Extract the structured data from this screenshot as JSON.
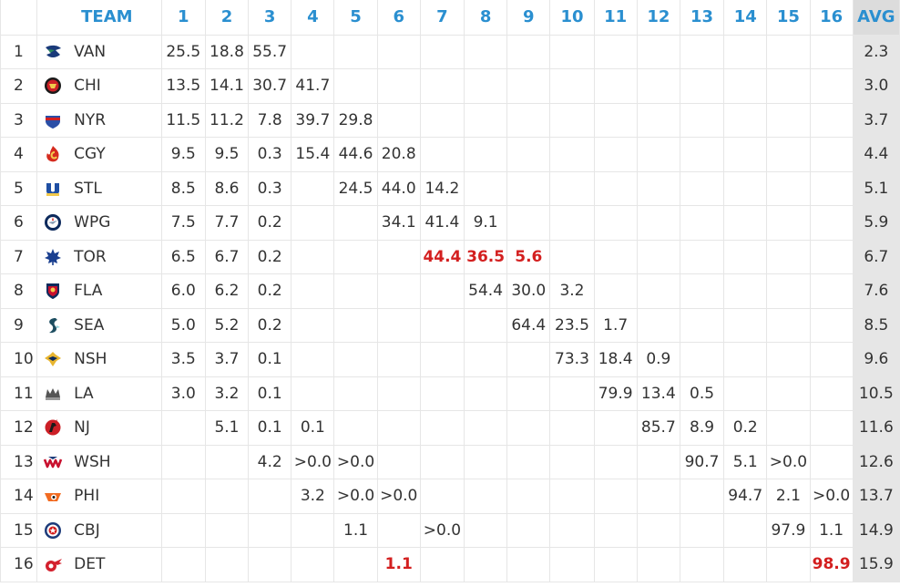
{
  "chart_data": {
    "type": "table",
    "columns": [
      "TEAM",
      "1",
      "2",
      "3",
      "4",
      "5",
      "6",
      "7",
      "8",
      "9",
      "10",
      "11",
      "12",
      "13",
      "14",
      "15",
      "16",
      "AVG"
    ],
    "rows": [
      {
        "rank": "1",
        "team": "VAN",
        "logo": "canucks-logo",
        "color": "#1a3a7a",
        "cells": [
          "25.5",
          "18.8",
          "55.7",
          "",
          "",
          "",
          "",
          "",
          "",
          "",
          "",
          "",
          "",
          "",
          "",
          ""
        ],
        "avg": "2.3",
        "highlight": []
      },
      {
        "rank": "2",
        "team": "CHI",
        "logo": "blackhawks-logo",
        "color": "#cc1f26",
        "cells": [
          "13.5",
          "14.1",
          "30.7",
          "41.7",
          "",
          "",
          "",
          "",
          "",
          "",
          "",
          "",
          "",
          "",
          "",
          ""
        ],
        "avg": "3.0",
        "highlight": []
      },
      {
        "rank": "3",
        "team": "NYR",
        "logo": "rangers-logo",
        "color": "#2a4ea6",
        "cells": [
          "11.5",
          "11.2",
          "7.8",
          "39.7",
          "29.8",
          "",
          "",
          "",
          "",
          "",
          "",
          "",
          "",
          "",
          "",
          ""
        ],
        "avg": "3.7",
        "highlight": []
      },
      {
        "rank": "4",
        "team": "CGY",
        "logo": "flames-logo",
        "color": "#d52b1e",
        "cells": [
          "9.5",
          "9.5",
          "0.3",
          "15.4",
          "44.6",
          "20.8",
          "",
          "",
          "",
          "",
          "",
          "",
          "",
          "",
          "",
          ""
        ],
        "avg": "4.4",
        "highlight": []
      },
      {
        "rank": "5",
        "team": "STL",
        "logo": "blues-logo",
        "color": "#1f4fa3",
        "cells": [
          "8.5",
          "8.6",
          "0.3",
          "",
          "24.5",
          "44.0",
          "14.2",
          "",
          "",
          "",
          "",
          "",
          "",
          "",
          "",
          ""
        ],
        "avg": "5.1",
        "highlight": []
      },
      {
        "rank": "6",
        "team": "WPG",
        "logo": "jets-logo",
        "color": "#0d2a5c",
        "cells": [
          "7.5",
          "7.7",
          "0.2",
          "",
          "",
          "34.1",
          "41.4",
          "9.1",
          "",
          "",
          "",
          "",
          "",
          "",
          "",
          ""
        ],
        "avg": "5.9",
        "highlight": []
      },
      {
        "rank": "7",
        "team": "TOR",
        "logo": "maple-leafs-logo",
        "color": "#1a3f8f",
        "cells": [
          "6.5",
          "6.7",
          "0.2",
          "",
          "",
          "",
          "44.4",
          "36.5",
          "5.6",
          "",
          "",
          "",
          "",
          "",
          "",
          ""
        ],
        "avg": "6.7",
        "highlight": [
          6,
          7,
          8
        ]
      },
      {
        "rank": "8",
        "team": "FLA",
        "logo": "panthers-logo",
        "color": "#c8102e",
        "cells": [
          "6.0",
          "6.2",
          "0.2",
          "",
          "",
          "",
          "",
          "54.4",
          "30.0",
          "3.2",
          "",
          "",
          "",
          "",
          "",
          ""
        ],
        "avg": "7.6",
        "highlight": []
      },
      {
        "rank": "9",
        "team": "SEA",
        "logo": "kraken-logo",
        "color": "#1c4d60",
        "cells": [
          "5.0",
          "5.2",
          "0.2",
          "",
          "",
          "",
          "",
          "",
          "64.4",
          "23.5",
          "1.7",
          "",
          "",
          "",
          "",
          ""
        ],
        "avg": "8.5",
        "highlight": []
      },
      {
        "rank": "10",
        "team": "NSH",
        "logo": "predators-logo",
        "color": "#e8b530",
        "cells": [
          "3.5",
          "3.7",
          "0.1",
          "",
          "",
          "",
          "",
          "",
          "",
          "73.3",
          "18.4",
          "0.9",
          "",
          "",
          "",
          ""
        ],
        "avg": "9.6",
        "highlight": []
      },
      {
        "rank": "11",
        "team": "LA",
        "logo": "kings-logo",
        "color": "#555555",
        "cells": [
          "3.0",
          "3.2",
          "0.1",
          "",
          "",
          "",
          "",
          "",
          "",
          "",
          "79.9",
          "13.4",
          "0.5",
          "",
          "",
          ""
        ],
        "avg": "10.5",
        "highlight": []
      },
      {
        "rank": "12",
        "team": "NJ",
        "logo": "devils-logo",
        "color": "#cc1f26",
        "cells": [
          "",
          "5.1",
          "0.1",
          "0.1",
          "",
          "",
          "",
          "",
          "",
          "",
          "",
          "85.7",
          "8.9",
          "0.2",
          "",
          ""
        ],
        "avg": "11.6",
        "highlight": []
      },
      {
        "rank": "13",
        "team": "WSH",
        "logo": "capitals-logo",
        "color": "#c8102e",
        "cells": [
          "",
          "",
          "4.2",
          ">0.0",
          ">0.0",
          "",
          "",
          "",
          "",
          "",
          "",
          "",
          "90.7",
          "5.1",
          ">0.0",
          ""
        ],
        "avg": "12.6",
        "highlight": []
      },
      {
        "rank": "14",
        "team": "PHI",
        "logo": "flyers-logo",
        "color": "#f26b21",
        "cells": [
          "",
          "",
          "",
          "3.2",
          ">0.0",
          ">0.0",
          "",
          "",
          "",
          "",
          "",
          "",
          "",
          "94.7",
          "2.1",
          ">0.0"
        ],
        "avg": "13.7",
        "highlight": []
      },
      {
        "rank": "15",
        "team": "CBJ",
        "logo": "blue-jackets-logo",
        "color": "#1d3b7a",
        "cells": [
          "",
          "",
          "",
          "",
          "1.1",
          "",
          ">0.0",
          "",
          "",
          "",
          "",
          "",
          "",
          "",
          "97.9",
          "1.1"
        ],
        "avg": "14.9",
        "highlight": []
      },
      {
        "rank": "16",
        "team": "DET",
        "logo": "red-wings-logo",
        "color": "#d3202d",
        "cells": [
          "",
          "",
          "",
          "",
          "",
          "1.1",
          "",
          "",
          "",
          "",
          "",
          "",
          "",
          "",
          "",
          "98.9"
        ],
        "avg": "15.9",
        "highlight": [
          5,
          15
        ]
      }
    ],
    "highlight_color": "#d31f1f",
    "header_color": "#2a8fd0",
    "avg_column_background": "#e6e6e6"
  }
}
